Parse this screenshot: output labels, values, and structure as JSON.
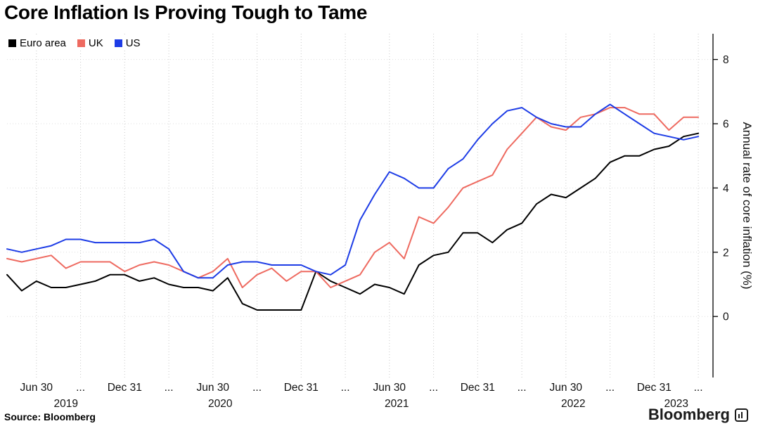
{
  "title": "Core Inflation Is Proving Tough to Tame",
  "source": "Source: Bloomberg",
  "logo": "Bloomberg",
  "colors": {
    "euro_area": "#000000",
    "uk": "#ee6a60",
    "us": "#1d3ce6",
    "grid": "#cccccc",
    "axis": "#000000"
  },
  "chart_data": {
    "type": "line",
    "title": "Core Inflation Is Proving Tough to Tame",
    "xlabel": "",
    "ylabel": "Annual rate of core inflation (%)",
    "ylim": [
      -1.9,
      8.8
    ],
    "yticks": [
      0,
      2,
      4,
      6,
      8
    ],
    "xlim": [
      0,
      48
    ],
    "grid": "dotted",
    "legend_position": "top-left",
    "axis_side": "right",
    "x_months": [
      "2019-04",
      "2019-05",
      "2019-06",
      "2019-07",
      "2019-08",
      "2019-09",
      "2019-10",
      "2019-11",
      "2019-12",
      "2020-01",
      "2020-02",
      "2020-03",
      "2020-04",
      "2020-05",
      "2020-06",
      "2020-07",
      "2020-08",
      "2020-09",
      "2020-10",
      "2020-11",
      "2020-12",
      "2021-01",
      "2021-02",
      "2021-03",
      "2021-04",
      "2021-05",
      "2021-06",
      "2021-07",
      "2021-08",
      "2021-09",
      "2021-10",
      "2021-11",
      "2021-12",
      "2022-01",
      "2022-02",
      "2022-03",
      "2022-04",
      "2022-05",
      "2022-06",
      "2022-07",
      "2022-08",
      "2022-09",
      "2022-10",
      "2022-11",
      "2022-12",
      "2023-01",
      "2023-02",
      "2023-03"
    ],
    "xticks": [
      {
        "x": 2,
        "label": "Jun 30"
      },
      {
        "x": 5,
        "label": "..."
      },
      {
        "x": 8,
        "label": "Dec 31"
      },
      {
        "x": 11,
        "label": "..."
      },
      {
        "x": 14,
        "label": "Jun 30"
      },
      {
        "x": 17,
        "label": "..."
      },
      {
        "x": 20,
        "label": "Dec 31"
      },
      {
        "x": 23,
        "label": "..."
      },
      {
        "x": 26,
        "label": "Jun 30"
      },
      {
        "x": 29,
        "label": "..."
      },
      {
        "x": 32,
        "label": "Dec 31"
      },
      {
        "x": 35,
        "label": "..."
      },
      {
        "x": 38,
        "label": "Jun 30"
      },
      {
        "x": 41,
        "label": "..."
      },
      {
        "x": 44,
        "label": "Dec 31"
      },
      {
        "x": 47,
        "label": "..."
      }
    ],
    "year_labels": [
      {
        "x": 4,
        "label": "2019"
      },
      {
        "x": 14.5,
        "label": "2020"
      },
      {
        "x": 26.5,
        "label": "2021"
      },
      {
        "x": 38.5,
        "label": "2022"
      },
      {
        "x": 45.5,
        "label": "2023"
      }
    ],
    "series": [
      {
        "name": "Euro area",
        "color": "#000000",
        "values": [
          1.3,
          0.8,
          1.1,
          0.9,
          0.9,
          1.0,
          1.1,
          1.3,
          1.3,
          1.1,
          1.2,
          1.0,
          0.9,
          0.9,
          0.8,
          1.2,
          0.4,
          0.2,
          0.2,
          0.2,
          0.2,
          1.4,
          1.1,
          0.9,
          0.7,
          1.0,
          0.9,
          0.7,
          1.6,
          1.9,
          2.0,
          2.6,
          2.6,
          2.3,
          2.7,
          2.9,
          3.5,
          3.8,
          3.7,
          4.0,
          4.3,
          4.8,
          5.0,
          5.0,
          5.2,
          5.3,
          5.6,
          5.7
        ]
      },
      {
        "name": "UK",
        "color": "#ee6a60",
        "values": [
          1.8,
          1.7,
          1.8,
          1.9,
          1.5,
          1.7,
          1.7,
          1.7,
          1.4,
          1.6,
          1.7,
          1.6,
          1.4,
          1.2,
          1.4,
          1.8,
          0.9,
          1.3,
          1.5,
          1.1,
          1.4,
          1.4,
          0.9,
          1.1,
          1.3,
          2.0,
          2.3,
          1.8,
          3.1,
          2.9,
          3.4,
          4.0,
          4.2,
          4.4,
          5.2,
          5.7,
          6.2,
          5.9,
          5.8,
          6.2,
          6.3,
          6.5,
          6.5,
          6.3,
          6.3,
          5.8,
          6.2,
          6.2
        ]
      },
      {
        "name": "US",
        "color": "#1d3ce6",
        "values": [
          2.1,
          2.0,
          2.1,
          2.2,
          2.4,
          2.4,
          2.3,
          2.3,
          2.3,
          2.3,
          2.4,
          2.1,
          1.4,
          1.2,
          1.2,
          1.6,
          1.7,
          1.7,
          1.6,
          1.6,
          1.6,
          1.4,
          1.3,
          1.6,
          3.0,
          3.8,
          4.5,
          4.3,
          4.0,
          4.0,
          4.6,
          4.9,
          5.5,
          6.0,
          6.4,
          6.5,
          6.2,
          6.0,
          5.9,
          5.9,
          6.3,
          6.6,
          6.3,
          6.0,
          5.7,
          5.6,
          5.5,
          5.6
        ]
      }
    ]
  }
}
